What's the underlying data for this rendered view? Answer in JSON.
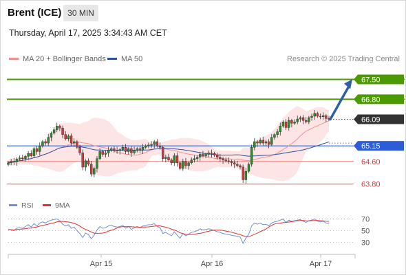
{
  "header": {
    "instrument": "Brent (ICE)",
    "timeframe": "30 MIN",
    "datetime": "Thursday, April 17, 2025 3:34:43 AM CET"
  },
  "legend": {
    "ma20": "MA 20 + Bollinger Bands",
    "ma50": "MA 50",
    "credit": "Research © 2025 Trading Central"
  },
  "rsi_legend": {
    "rsi": "RSI",
    "ma": "9MA"
  },
  "colors": {
    "resistance": "#4c9a00",
    "support": "#f08a8a",
    "pivot": "#2d5cd6",
    "bands": "#fcdcdc",
    "ma20": "#f29090",
    "ma50": "#2d4f9e",
    "candle_up": "#2e8b2e",
    "candle_down": "#d23b3b",
    "arrow": "#2d5fa8",
    "rsi": "#6f8fd8",
    "rsi_ma": "#e03030",
    "last_price_tag": "#333333"
  },
  "chart_data": {
    "type": "candlestick",
    "instrument": "Brent (ICE)",
    "interval": "30 MIN",
    "price_axis": {
      "ylim": [
        63.5,
        68.0
      ]
    },
    "x_ticks": [
      "Apr 15",
      "Apr 16",
      "Apr 17"
    ],
    "levels": [
      {
        "value": 67.5,
        "label": "67.50",
        "kind": "resistance"
      },
      {
        "value": 66.8,
        "label": "66.80",
        "kind": "resistance"
      },
      {
        "value": 66.09,
        "label": "66.09",
        "kind": "last"
      },
      {
        "value": 65.15,
        "label": "65.15",
        "kind": "pivot"
      },
      {
        "value": 64.6,
        "label": "64.60",
        "kind": "support"
      },
      {
        "value": 63.8,
        "label": "63.80",
        "kind": "support"
      }
    ],
    "target_arrow": {
      "from": 66.09,
      "to": 67.5
    },
    "closes": [
      64.55,
      64.6,
      64.58,
      64.68,
      64.72,
      64.7,
      64.78,
      64.88,
      64.8,
      65.05,
      64.95,
      65.15,
      65.3,
      65.25,
      65.45,
      65.6,
      65.72,
      65.85,
      65.78,
      65.55,
      65.4,
      65.5,
      65.25,
      65.3,
      65.1,
      64.9,
      64.4,
      64.62,
      64.5,
      64.15,
      64.35,
      64.7,
      64.95,
      64.85,
      64.9,
      65.0,
      65.05,
      65.0,
      64.98,
      65.02,
      65.1,
      64.95,
      65.05,
      64.9,
      65.0,
      65.05,
      65.0,
      65.1,
      65.15,
      65.18,
      65.2,
      65.3,
      65.15,
      65.1,
      64.7,
      64.75,
      64.65,
      64.55,
      64.8,
      64.55,
      64.35,
      64.6,
      64.45,
      64.55,
      64.65,
      64.7,
      64.75,
      64.85,
      64.8,
      64.85,
      64.9,
      64.88,
      64.82,
      64.75,
      64.7,
      64.65,
      64.62,
      64.6,
      64.55,
      64.5,
      64.45,
      64.4,
      63.95,
      64.25,
      64.5,
      65.1,
      65.3,
      65.25,
      65.35,
      65.25,
      65.3,
      65.2,
      65.45,
      65.55,
      65.65,
      65.85,
      66.0,
      65.8,
      66.05,
      65.95,
      66.0,
      66.1,
      66.15,
      66.05,
      66.0,
      66.15,
      66.2,
      66.3,
      66.2,
      66.18,
      66.22,
      66.12,
      66.09
    ],
    "rsi": {
      "ylim": [
        15,
        80
      ],
      "ticks": [
        70,
        50,
        30
      ],
      "values": [
        52,
        51,
        50,
        54,
        55,
        54,
        57,
        60,
        56,
        62,
        58,
        63,
        65,
        63,
        66,
        68,
        69,
        70,
        67,
        61,
        58,
        60,
        54,
        56,
        50,
        45,
        38,
        46,
        43,
        36,
        42,
        51,
        57,
        54,
        55,
        58,
        59,
        57,
        56,
        57,
        59,
        54,
        57,
        52,
        55,
        57,
        55,
        58,
        59,
        60,
        60,
        62,
        57,
        55,
        45,
        47,
        44,
        41,
        48,
        42,
        37,
        45,
        41,
        44,
        47,
        48,
        50,
        53,
        51,
        52,
        53,
        52,
        50,
        48,
        47,
        45,
        44,
        43,
        42,
        41,
        40,
        39,
        28,
        37,
        44,
        58,
        63,
        61,
        63,
        60,
        61,
        58,
        63,
        65,
        66,
        68,
        70,
        64,
        68,
        66,
        67,
        68,
        69,
        66,
        64,
        67,
        68,
        70,
        66,
        65,
        66,
        63,
        62
      ]
    }
  }
}
